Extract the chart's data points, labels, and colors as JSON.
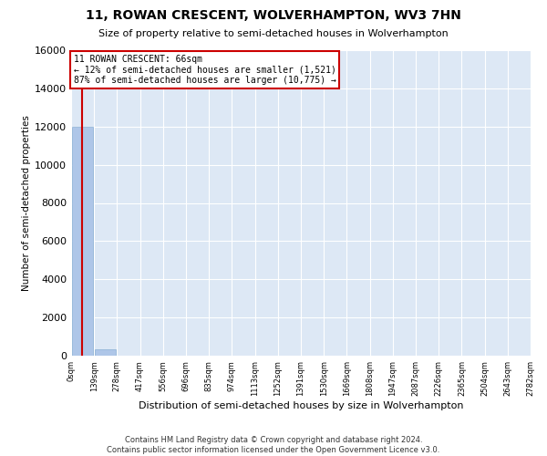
{
  "title": "11, ROWAN CRESCENT, WOLVERHAMPTON, WV3 7HN",
  "subtitle": "Size of property relative to semi-detached houses in Wolverhampton",
  "xlabel": "Distribution of semi-detached houses by size in Wolverhampton",
  "ylabel": "Number of semi-detached properties",
  "footer_line1": "Contains HM Land Registry data © Crown copyright and database right 2024.",
  "footer_line2": "Contains public sector information licensed under the Open Government Licence v3.0.",
  "property_size": 66,
  "property_label": "11 ROWAN CRESCENT: 66sqm",
  "pct_smaller": 12,
  "pct_larger": 87,
  "n_smaller": 1521,
  "n_larger": 10775,
  "bin_edges": [
    0,
    139,
    278,
    417,
    556,
    696,
    835,
    974,
    1113,
    1252,
    1391,
    1530,
    1669,
    1808,
    1947,
    2087,
    2226,
    2365,
    2504,
    2643,
    2782
  ],
  "bin_labels": [
    "0sqm",
    "139sqm",
    "278sqm",
    "417sqm",
    "556sqm",
    "696sqm",
    "835sqm",
    "974sqm",
    "1113sqm",
    "1252sqm",
    "1391sqm",
    "1530sqm",
    "1669sqm",
    "1808sqm",
    "1947sqm",
    "2087sqm",
    "2226sqm",
    "2365sqm",
    "2504sqm",
    "2643sqm",
    "2782sqm"
  ],
  "bar_heights": [
    12000,
    350,
    0,
    0,
    0,
    0,
    0,
    0,
    0,
    0,
    0,
    0,
    0,
    0,
    0,
    0,
    0,
    0,
    0,
    0
  ],
  "bar_color": "#aec6e8",
  "property_line_color": "#cc0000",
  "annotation_box_color": "#cc0000",
  "background_color": "#dde8f5",
  "ylim": [
    0,
    16000
  ],
  "yticks": [
    0,
    2000,
    4000,
    6000,
    8000,
    10000,
    12000,
    14000,
    16000
  ]
}
